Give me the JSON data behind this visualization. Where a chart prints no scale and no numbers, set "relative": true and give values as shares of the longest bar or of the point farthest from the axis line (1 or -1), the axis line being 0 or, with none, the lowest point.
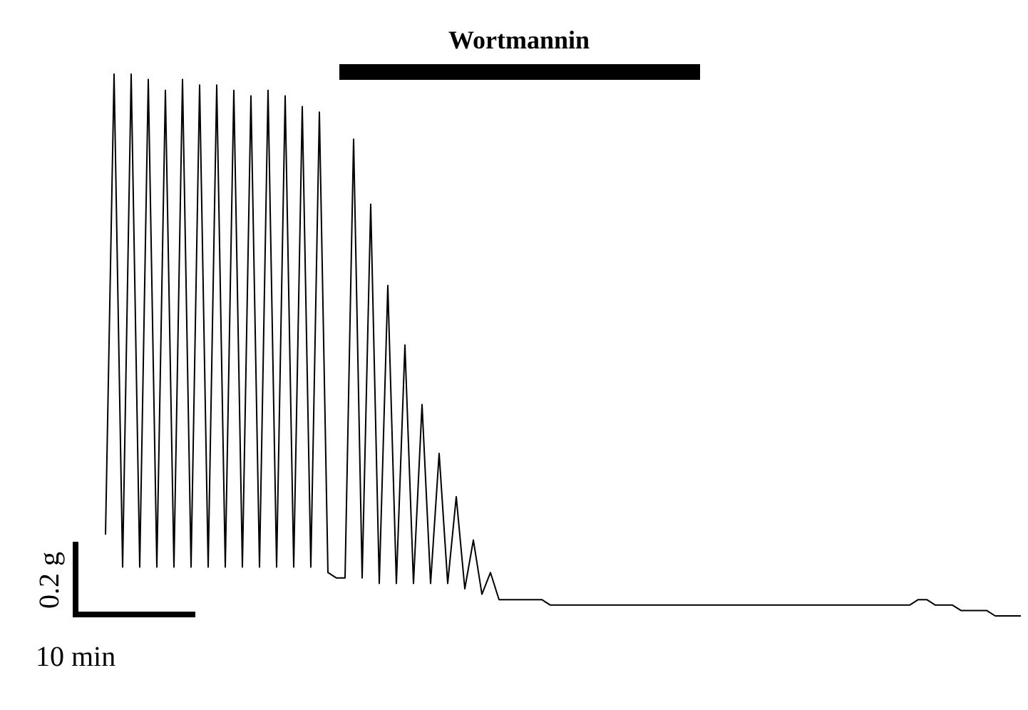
{
  "chart_data": {
    "type": "line",
    "relative": true,
    "line_style": "solid",
    "categories": [
      null,
      null,
      null,
      null,
      null,
      null,
      null,
      null,
      null,
      null,
      null,
      null,
      null,
      null,
      null,
      null,
      null,
      null,
      null,
      null,
      null,
      null,
      null,
      null,
      null,
      null,
      null,
      null,
      null,
      null,
      null,
      null,
      null,
      null,
      null,
      null,
      null,
      null,
      null,
      null,
      null,
      null,
      null,
      null,
      null,
      null,
      null,
      null,
      null,
      null,
      null,
      null,
      null,
      null,
      null,
      null,
      null,
      null,
      null,
      null,
      null,
      null,
      null,
      null,
      null,
      null,
      null,
      null,
      null,
      null,
      null,
      null,
      null,
      null,
      null,
      null,
      null,
      null,
      null,
      null,
      null,
      null,
      null,
      null,
      null,
      null,
      null,
      null,
      null,
      null,
      null,
      null,
      null,
      null,
      null,
      null,
      null,
      null,
      null,
      null,
      null,
      null,
      null,
      null,
      null,
      null,
      null,
      null
    ],
    "series": [
      {
        "color": "#000000",
        "values": [
          0.15,
          1.0,
          0.09,
          1.0,
          0.09,
          0.99,
          0.09,
          0.97,
          0.09,
          0.99,
          0.09,
          0.98,
          0.09,
          0.98,
          0.09,
          0.97,
          0.09,
          0.96,
          0.09,
          0.97,
          0.09,
          0.96,
          0.09,
          0.94,
          0.09,
          0.93,
          0.08,
          0.07,
          0.07,
          0.88,
          0.07,
          0.76,
          0.06,
          0.61,
          0.06,
          0.5,
          0.06,
          0.39,
          0.06,
          0.3,
          0.06,
          0.22,
          0.05,
          0.14,
          0.04,
          0.08,
          0.03,
          0.03,
          0.03,
          0.03,
          0.03,
          0.03,
          0.02,
          0.02,
          0.02,
          0.02,
          0.02,
          0.02,
          0.02,
          0.02,
          0.02,
          0.02,
          0.02,
          0.02,
          0.02,
          0.02,
          0.02,
          0.02,
          0.02,
          0.02,
          0.02,
          0.02,
          0.02,
          0.02,
          0.02,
          0.02,
          0.02,
          0.02,
          0.02,
          0.02,
          0.02,
          0.02,
          0.02,
          0.02,
          0.02,
          0.02,
          0.02,
          0.02,
          0.02,
          0.02,
          0.02,
          0.02,
          0.02,
          0.02,
          0.02,
          0.03,
          0.03,
          0.02,
          0.02,
          0.02,
          0.01,
          0.01,
          0.01,
          0.01,
          0,
          0,
          0,
          0
        ]
      }
    ],
    "annotations": [
      "Wortmannin",
      "0.2 g",
      "10 min"
    ]
  }
}
